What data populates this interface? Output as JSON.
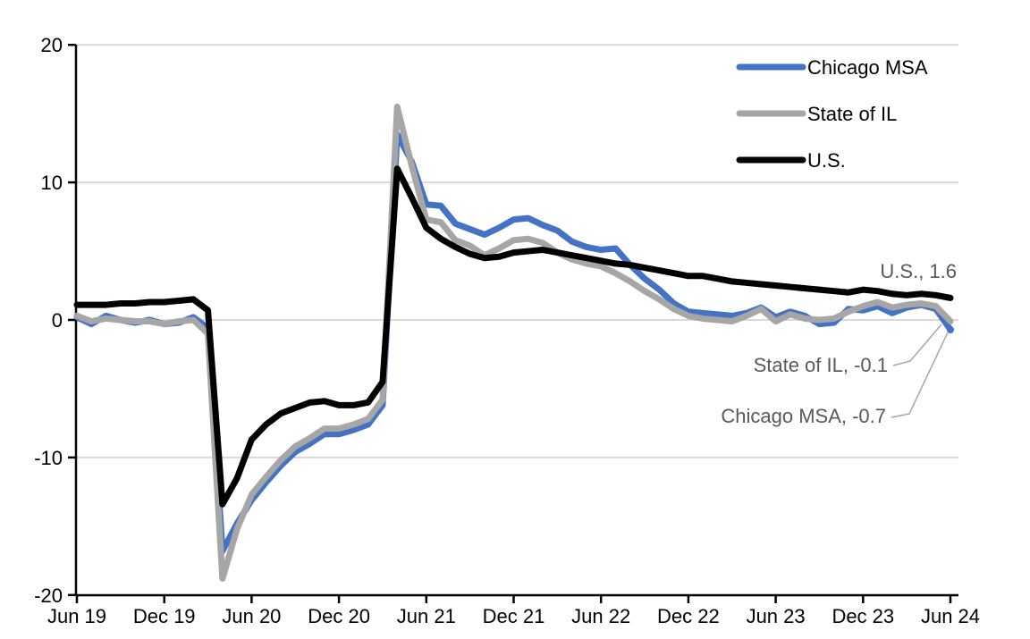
{
  "chart_data": {
    "type": "line",
    "title": "",
    "xlabel": "",
    "ylabel": "",
    "x_unit": "monthly",
    "x_start": "Jun 2019",
    "x_end": "Jun 2024",
    "n_points": 61,
    "x_tick_labels": [
      "Jun 19",
      "Dec 19",
      "Jun 20",
      "Dec 20",
      "Jun 21",
      "Dec 21",
      "Jun 22",
      "Dec 22",
      "Jun 23",
      "Dec 23",
      "Jun 24"
    ],
    "x_tick_positions_months": [
      0,
      6,
      12,
      18,
      24,
      30,
      36,
      42,
      48,
      54,
      60
    ],
    "y_ticks": [
      20,
      10,
      0,
      -10,
      -20
    ],
    "ylim": [
      -20,
      20
    ],
    "grid": "horizontal",
    "legend_position": "top-right",
    "series": [
      {
        "name": "Chicago MSA",
        "color": "#4472C4",
        "values": [
          0.2,
          -0.3,
          0.3,
          0.0,
          -0.2,
          0.0,
          -0.3,
          -0.2,
          0.2,
          -0.6,
          -16.8,
          -14.8,
          -13.1,
          -11.8,
          -10.6,
          -9.6,
          -9.0,
          -8.3,
          -8.3,
          -8.0,
          -7.6,
          -6.2,
          13.5,
          11.5,
          8.4,
          8.3,
          7.0,
          6.6,
          6.2,
          6.7,
          7.3,
          7.4,
          6.9,
          6.5,
          5.7,
          5.3,
          5.1,
          5.2,
          4.0,
          3.0,
          2.2,
          1.2,
          0.6,
          0.5,
          0.4,
          0.3,
          0.5,
          0.9,
          0.2,
          0.6,
          0.3,
          -0.3,
          -0.2,
          0.8,
          0.7,
          1.0,
          0.5,
          0.9,
          1.1,
          0.8,
          -0.7
        ]
      },
      {
        "name": "State of IL",
        "color": "#A6A6A6",
        "values": [
          0.3,
          -0.1,
          0.1,
          0.0,
          -0.1,
          -0.1,
          -0.3,
          -0.1,
          0.0,
          -1.0,
          -18.8,
          -15.2,
          -12.7,
          -11.4,
          -10.2,
          -9.2,
          -8.6,
          -7.9,
          -7.9,
          -7.6,
          -7.2,
          -5.8,
          15.5,
          11.2,
          7.3,
          7.1,
          5.8,
          5.4,
          4.7,
          5.2,
          5.8,
          5.9,
          5.6,
          4.9,
          4.4,
          4.1,
          3.9,
          3.4,
          2.8,
          2.1,
          1.5,
          0.8,
          0.3,
          0.1,
          0.0,
          -0.1,
          0.3,
          0.8,
          -0.1,
          0.4,
          0.1,
          0.0,
          0.1,
          0.6,
          1.0,
          1.3,
          0.9,
          1.1,
          1.2,
          1.0,
          -0.1
        ]
      },
      {
        "name": "U.S.",
        "color": "#000000",
        "values": [
          1.1,
          1.1,
          1.1,
          1.2,
          1.2,
          1.3,
          1.3,
          1.4,
          1.5,
          0.7,
          -13.4,
          -11.5,
          -8.7,
          -7.6,
          -6.8,
          -6.4,
          -6.0,
          -5.9,
          -6.2,
          -6.2,
          -6.0,
          -4.5,
          11.0,
          8.9,
          6.7,
          5.9,
          5.3,
          4.8,
          4.5,
          4.6,
          4.9,
          5.0,
          5.1,
          4.9,
          4.7,
          4.5,
          4.3,
          4.1,
          4.0,
          3.8,
          3.6,
          3.4,
          3.2,
          3.2,
          3.0,
          2.8,
          2.7,
          2.6,
          2.5,
          2.4,
          2.3,
          2.2,
          2.1,
          2.0,
          2.2,
          2.1,
          1.9,
          1.8,
          1.9,
          1.8,
          1.6
        ]
      }
    ],
    "annotations": [
      {
        "text": "U.S., 1.6",
        "series": "U.S.",
        "value": 1.6
      },
      {
        "text": "State of IL, -0.1",
        "series": "State of IL",
        "value": -0.1
      },
      {
        "text": "Chicago MSA, -0.7",
        "series": "Chicago MSA",
        "value": -0.7
      }
    ]
  },
  "legend": {
    "items": [
      {
        "label": "Chicago MSA",
        "color": "#4472C4"
      },
      {
        "label": "State of IL",
        "color": "#A6A6A6"
      },
      {
        "label": "U.S.",
        "color": "#000000"
      }
    ]
  },
  "colors": {
    "background": "#FFFFFF",
    "gridline": "#D9D9D9",
    "axis": "#000000",
    "annotation_text": "#595959",
    "leader_line": "#A6A6A6"
  }
}
